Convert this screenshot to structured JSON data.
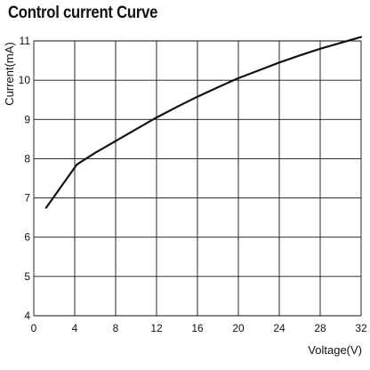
{
  "chart_data": {
    "type": "line",
    "title": "Control current Curve",
    "xlabel": "Voltage(V)",
    "ylabel": "Current(mA)",
    "xlim": [
      0,
      32
    ],
    "ylim": [
      4,
      11
    ],
    "xticks": [
      0,
      4,
      8,
      12,
      16,
      20,
      24,
      28,
      32
    ],
    "yticks": [
      4,
      5,
      6,
      7,
      8,
      9,
      10,
      11
    ],
    "grid": true,
    "series": [
      {
        "color": "#111111",
        "x": [
          1.2,
          4.2,
          6,
          8,
          10,
          12,
          14,
          16,
          18,
          20,
          22,
          24,
          26,
          28,
          30,
          32
        ],
        "y": [
          6.75,
          7.85,
          8.15,
          8.45,
          8.75,
          9.05,
          9.32,
          9.58,
          9.82,
          10.05,
          10.25,
          10.45,
          10.63,
          10.8,
          10.95,
          11.1
        ]
      }
    ]
  }
}
